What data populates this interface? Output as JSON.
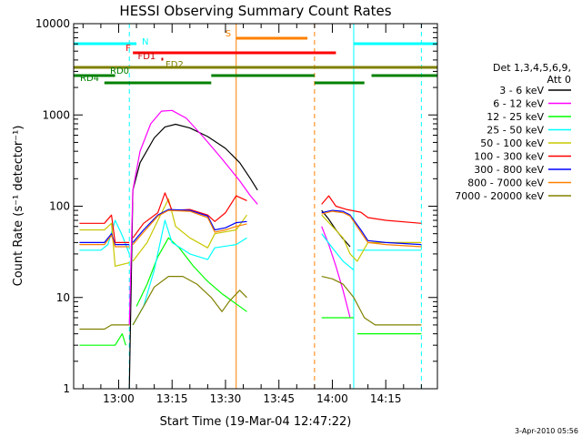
{
  "chart_data": {
    "type": "line",
    "title": "HESSI Observing Summary Count Rates",
    "xlabel": "Start Time (19-Mar-04 12:47:22)",
    "ylabel": "Count Rate (s⁻¹ detector⁻¹)",
    "y_scale": "log",
    "ylim": [
      1,
      10000
    ],
    "xlim": [
      "12:47:22",
      "14:29:30"
    ],
    "x_ticks": [
      "13:00",
      "13:15",
      "13:30",
      "13:45",
      "14:00",
      "14:15"
    ],
    "y_ticks": [
      "1",
      "10",
      "100",
      "1000",
      "10000"
    ],
    "footer_timestamp": "3-Apr-2010 05:56",
    "legend": {
      "header": [
        "Det 1,3,4,5,6,9,",
        "Att 0"
      ],
      "entries": [
        {
          "label": "3 - 6 keV",
          "color": "#000000"
        },
        {
          "label": "6 - 12 keV",
          "color": "#ff00ff"
        },
        {
          "label": "12 - 25 keV",
          "color": "#00ff00"
        },
        {
          "label": "25 - 50 keV",
          "color": "#00ffff"
        },
        {
          "label": "50 - 100 keV",
          "color": "#c8c800"
        },
        {
          "label": "100 - 300 keV",
          "color": "#ff0000"
        },
        {
          "label": "300 - 800 keV",
          "color": "#0000ff"
        },
        {
          "label": "800 - 7000 keV",
          "color": "#ff8000"
        },
        {
          "label": "7000 - 20000 keV",
          "color": "#808000"
        }
      ]
    },
    "flag_bars": [
      {
        "label": "N",
        "color": "#00ffff",
        "segments": [
          [
            "12:47:22",
            "13:05"
          ],
          [
            "14:06",
            "14:29:30"
          ]
        ]
      },
      {
        "label": "S",
        "color": "#ff8000",
        "segments": [
          [
            "13:33",
            "13:53"
          ]
        ]
      },
      {
        "label": "F",
        "color": "#ff0000",
        "segments": [
          [
            "13:04",
            "14:01"
          ]
        ]
      },
      {
        "label": "FD1",
        "color": "#c80000",
        "segments": [
          [
            "13:12",
            "13:12:30"
          ]
        ]
      },
      {
        "label": "FD2",
        "color": "#808000",
        "segments": [
          [
            "12:47:22",
            "14:29:30"
          ]
        ]
      },
      {
        "label": "RD0",
        "color": "#008000",
        "segments": [
          [
            "12:47:22",
            "12:59"
          ],
          [
            "13:26",
            "13:55"
          ],
          [
            "14:11",
            "14:29:30"
          ]
        ]
      },
      {
        "label": "RD4",
        "color": "#008000",
        "segments": [
          [
            "12:56",
            "13:26"
          ],
          [
            "13:55",
            "14:09"
          ]
        ]
      }
    ],
    "vertical_markers": [
      {
        "time": "12:47:22",
        "color": "#00ffff",
        "style": "solid"
      },
      {
        "time": "13:03",
        "color": "#00ffff",
        "style": "dashed"
      },
      {
        "time": "13:33",
        "color": "#ff8000",
        "style": "solid"
      },
      {
        "time": "13:55",
        "color": "#ff8000",
        "style": "dashed"
      },
      {
        "time": "14:06",
        "color": "#00ffff",
        "style": "solid"
      },
      {
        "time": "14:25",
        "color": "#00ffff",
        "style": "dashed"
      }
    ],
    "series": [
      {
        "name": "3 - 6 keV",
        "color": "#000000",
        "segments": [
          [
            [
              "13:03",
              1
            ],
            [
              "13:04",
              150
            ],
            [
              "13:06",
              300
            ],
            [
              "13:10",
              560
            ],
            [
              "13:13",
              740
            ],
            [
              "13:16",
              790
            ],
            [
              "13:20",
              720
            ],
            [
              "13:25",
              580
            ],
            [
              "13:30",
              430
            ],
            [
              "13:34",
              300
            ],
            [
              "13:37",
              200
            ],
            [
              "13:39",
              150
            ]
          ],
          [
            [
              "13:57",
              90
            ],
            [
              "13:59",
              72
            ],
            [
              "14:01",
              55
            ],
            [
              "14:03",
              44
            ],
            [
              "14:05",
              36
            ]
          ]
        ]
      },
      {
        "name": "6 - 12 keV",
        "color": "#ff00ff",
        "segments": [
          [
            [
              "13:03",
              5
            ],
            [
              "13:04",
              150
            ],
            [
              "13:06",
              400
            ],
            [
              "13:09",
              800
            ],
            [
              "13:12",
              1100
            ],
            [
              "13:15",
              1120
            ],
            [
              "13:19",
              920
            ],
            [
              "13:24",
              560
            ],
            [
              "13:29",
              330
            ],
            [
              "13:34",
              190
            ],
            [
              "13:37",
              130
            ],
            [
              "13:39",
              105
            ]
          ],
          [
            [
              "13:57",
              60
            ],
            [
              "13:59",
              38
            ],
            [
              "14:01",
              22
            ],
            [
              "14:03",
              12
            ],
            [
              "14:05",
              6
            ]
          ]
        ]
      },
      {
        "name": "12 - 25 keV",
        "color": "#00ff00",
        "segments": [
          [
            [
              "12:49",
              3
            ],
            [
              "12:55",
              3
            ],
            [
              "12:59",
              3
            ],
            [
              "13:01",
              4
            ],
            [
              "13:02",
              3
            ]
          ],
          [
            [
              "13:05",
              8
            ],
            [
              "13:08",
              14
            ],
            [
              "13:11",
              28
            ],
            [
              "13:14",
              45
            ],
            [
              "13:17",
              35
            ],
            [
              "13:21",
              22
            ],
            [
              "13:25",
              15
            ],
            [
              "13:29",
              11
            ],
            [
              "13:33",
              8.5
            ],
            [
              "13:36",
              7
            ]
          ],
          [
            [
              "13:57",
              6
            ],
            [
              "14:00",
              6
            ],
            [
              "14:03",
              6
            ],
            [
              "14:06",
              6
            ]
          ],
          [
            [
              "14:07",
              4
            ],
            [
              "14:15",
              4
            ],
            [
              "14:25",
              4
            ]
          ]
        ]
      },
      {
        "name": "25 - 50 keV",
        "color": "#00ffff",
        "segments": [
          [
            [
              "12:49",
              33
            ],
            [
              "12:55",
              33
            ],
            [
              "12:57",
              38
            ],
            [
              "12:59",
              70
            ],
            [
              "13:01",
              48
            ],
            [
              "13:03",
              30
            ]
          ],
          [
            [
              "13:04",
              5
            ],
            [
              "13:07",
              8
            ],
            [
              "13:10",
              20
            ],
            [
              "13:13",
              70
            ],
            [
              "13:15",
              40
            ],
            [
              "13:20",
              30
            ],
            [
              "13:25",
              26
            ],
            [
              "13:27",
              35
            ],
            [
              "13:33",
              38
            ],
            [
              "13:36",
              45
            ]
          ],
          [
            [
              "13:57",
              50
            ],
            [
              "14:00",
              35
            ],
            [
              "14:03",
              25
            ],
            [
              "14:06",
              20
            ]
          ],
          [
            [
              "14:07",
              33
            ],
            [
              "14:15",
              33
            ],
            [
              "14:25",
              33
            ]
          ]
        ]
      },
      {
        "name": "50 - 100 keV",
        "color": "#c8c800",
        "segments": [
          [
            [
              "12:49",
              55
            ],
            [
              "12:56",
              55
            ],
            [
              "12:58",
              65
            ],
            [
              "12:59",
              22
            ],
            [
              "13:03",
              24
            ]
          ],
          [
            [
              "13:04",
              25
            ],
            [
              "13:08",
              40
            ],
            [
              "13:11",
              70
            ],
            [
              "13:14",
              120
            ],
            [
              "13:16",
              60
            ],
            [
              "13:20",
              45
            ],
            [
              "13:25",
              35
            ],
            [
              "13:27",
              50
            ],
            [
              "13:33",
              55
            ],
            [
              "13:36",
              80
            ]
          ],
          [
            [
              "13:57",
              80
            ],
            [
              "14:00",
              60
            ],
            [
              "14:03",
              45
            ],
            [
              "14:05",
              30
            ],
            [
              "14:07",
              25
            ],
            [
              "14:10",
              40
            ],
            [
              "14:15",
              40
            ],
            [
              "14:25",
              40
            ]
          ]
        ]
      },
      {
        "name": "100 - 300 keV",
        "color": "#ff0000",
        "segments": [
          [
            [
              "12:49",
              65
            ],
            [
              "12:56",
              65
            ],
            [
              "12:58",
              80
            ],
            [
              "12:59",
              40
            ],
            [
              "13:03",
              40
            ]
          ],
          [
            [
              "13:04",
              45
            ],
            [
              "13:07",
              65
            ],
            [
              "13:11",
              85
            ],
            [
              "13:13",
              140
            ],
            [
              "13:15",
              90
            ],
            [
              "13:20",
              92
            ],
            [
              "13:25",
              80
            ],
            [
              "13:27",
              68
            ],
            [
              "13:30",
              85
            ],
            [
              "13:33",
              130
            ],
            [
              "13:36",
              115
            ]
          ],
          [
            [
              "13:57",
              105
            ],
            [
              "13:59",
              130
            ],
            [
              "14:01",
              100
            ],
            [
              "14:04",
              92
            ],
            [
              "14:08",
              86
            ],
            [
              "14:10",
              75
            ],
            [
              "14:15",
              70
            ],
            [
              "14:25",
              65
            ]
          ]
        ]
      },
      {
        "name": "300 - 800 keV",
        "color": "#0000ff",
        "segments": [
          [
            [
              "12:49",
              40
            ],
            [
              "12:56",
              40
            ],
            [
              "12:58",
              50
            ],
            [
              "12:59",
              38
            ],
            [
              "13:03",
              38
            ]
          ],
          [
            [
              "13:04",
              40
            ],
            [
              "13:07",
              55
            ],
            [
              "13:11",
              80
            ],
            [
              "13:14",
              92
            ],
            [
              "13:20",
              90
            ],
            [
              "13:25",
              78
            ],
            [
              "13:27",
              55
            ],
            [
              "13:30",
              58
            ],
            [
              "13:33",
              66
            ],
            [
              "13:36",
              68
            ]
          ],
          [
            [
              "13:57",
              85
            ],
            [
              "14:00",
              90
            ],
            [
              "14:03",
              88
            ],
            [
              "14:05",
              80
            ],
            [
              "14:08",
              55
            ],
            [
              "14:10",
              42
            ],
            [
              "14:15",
              40
            ],
            [
              "14:25",
              38
            ]
          ]
        ]
      },
      {
        "name": "800 - 7000 keV",
        "color": "#ff8000",
        "segments": [
          [
            [
              "12:49",
              38
            ],
            [
              "12:56",
              38
            ],
            [
              "12:58",
              48
            ],
            [
              "12:59",
              36
            ],
            [
              "13:03",
              36
            ]
          ],
          [
            [
              "13:04",
              38
            ],
            [
              "13:07",
              52
            ],
            [
              "13:11",
              78
            ],
            [
              "13:14",
              90
            ],
            [
              "13:20",
              88
            ],
            [
              "13:25",
              75
            ],
            [
              "13:27",
              52
            ],
            [
              "13:30",
              55
            ],
            [
              "13:33",
              60
            ],
            [
              "13:36",
              64
            ]
          ],
          [
            [
              "13:57",
              82
            ],
            [
              "14:00",
              88
            ],
            [
              "14:03",
              85
            ],
            [
              "14:05",
              78
            ],
            [
              "14:08",
              52
            ],
            [
              "14:10",
              40
            ],
            [
              "14:15",
              38
            ],
            [
              "14:25",
              36
            ]
          ]
        ]
      },
      {
        "name": "7000 - 20000 keV",
        "color": "#808000",
        "segments": [
          [
            [
              "12:49",
              4.5
            ],
            [
              "12:56",
              4.5
            ],
            [
              "12:58",
              5
            ],
            [
              "12:59",
              5
            ],
            [
              "13:03",
              5
            ]
          ],
          [
            [
              "13:04",
              5
            ],
            [
              "13:07",
              8
            ],
            [
              "13:10",
              13
            ],
            [
              "13:14",
              17
            ],
            [
              "13:18",
              17
            ],
            [
              "13:22",
              14
            ],
            [
              "13:26",
              10
            ],
            [
              "13:29",
              7
            ],
            [
              "13:31",
              9
            ],
            [
              "13:34",
              12
            ],
            [
              "13:36",
              10
            ]
          ],
          [
            [
              "13:57",
              17
            ],
            [
              "14:00",
              16
            ],
            [
              "14:03",
              14
            ],
            [
              "14:06",
              10
            ],
            [
              "14:09",
              6
            ],
            [
              "14:12",
              5
            ],
            [
              "14:18",
              5
            ],
            [
              "14:25",
              5
            ]
          ]
        ]
      }
    ]
  }
}
